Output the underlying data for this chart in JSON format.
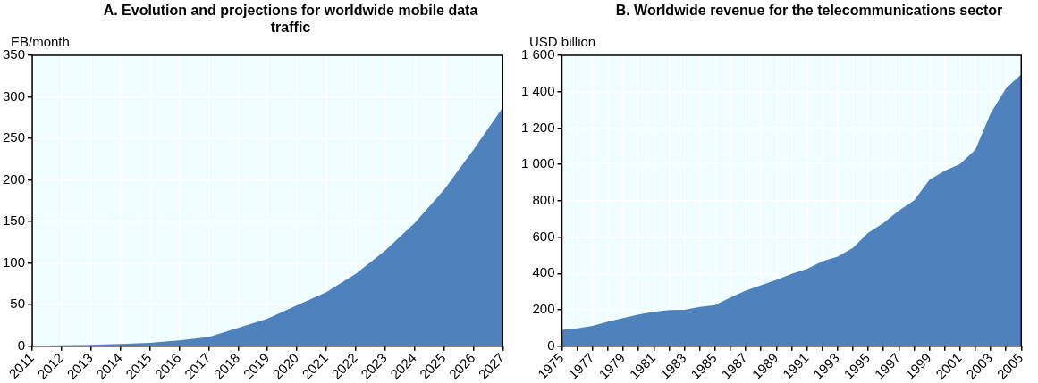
{
  "chart_data": [
    {
      "type": "area",
      "title": "A. Evolution and projections for worldwide mobile data traffic",
      "ylabel": "EB/month",
      "categories": [
        "2011",
        "2012",
        "2013",
        "2014",
        "2015",
        "2016",
        "2017",
        "2018",
        "2019",
        "2020",
        "2021",
        "2022",
        "2023",
        "2024",
        "2025",
        "2026",
        "2027"
      ],
      "series": [
        {
          "color": "#4f81bd",
          "values": [
            0.5,
            0.9,
            1.5,
            2.5,
            4,
            7,
            11,
            22,
            33,
            49,
            65,
            87,
            115,
            148,
            188,
            236,
            287
          ]
        }
      ],
      "ylim": [
        0,
        350
      ],
      "yticks": [
        0,
        50,
        100,
        150,
        200,
        250,
        300,
        350
      ],
      "grid": true
    },
    {
      "type": "area",
      "title": "B. Worldwide revenue for the telecommunications sector",
      "ylabel": "USD billion",
      "categories": [
        "1975",
        null,
        "1977",
        null,
        "1979",
        null,
        "1981",
        null,
        "1983",
        null,
        "1985",
        null,
        "1987",
        null,
        "1989",
        null,
        "1991",
        null,
        "1993",
        null,
        "1995",
        null,
        "1997",
        null,
        "1999",
        null,
        "2001",
        null,
        "2003",
        null,
        "2005"
      ],
      "series": [
        {
          "color": "#4f81bd",
          "values": [
            89,
            98,
            111,
            135,
            154,
            174,
            189,
            198,
            200,
            216,
            226,
            268,
            305,
            335,
            364,
            397,
            425,
            466,
            492,
            540,
            623,
            678,
            745,
            802,
            915,
            965,
            1002,
            1081,
            1281,
            1418,
            1496
          ]
        }
      ],
      "ylim": [
        0,
        1600
      ],
      "yticks": [
        0,
        200,
        400,
        600,
        800,
        {
          "value": 1000,
          "label": "1 000"
        },
        {
          "value": 1200,
          "label": "1 200"
        },
        {
          "value": 1400,
          "label": "1 400"
        },
        {
          "value": 1600,
          "label": "1 600"
        }
      ],
      "grid": true
    }
  ]
}
